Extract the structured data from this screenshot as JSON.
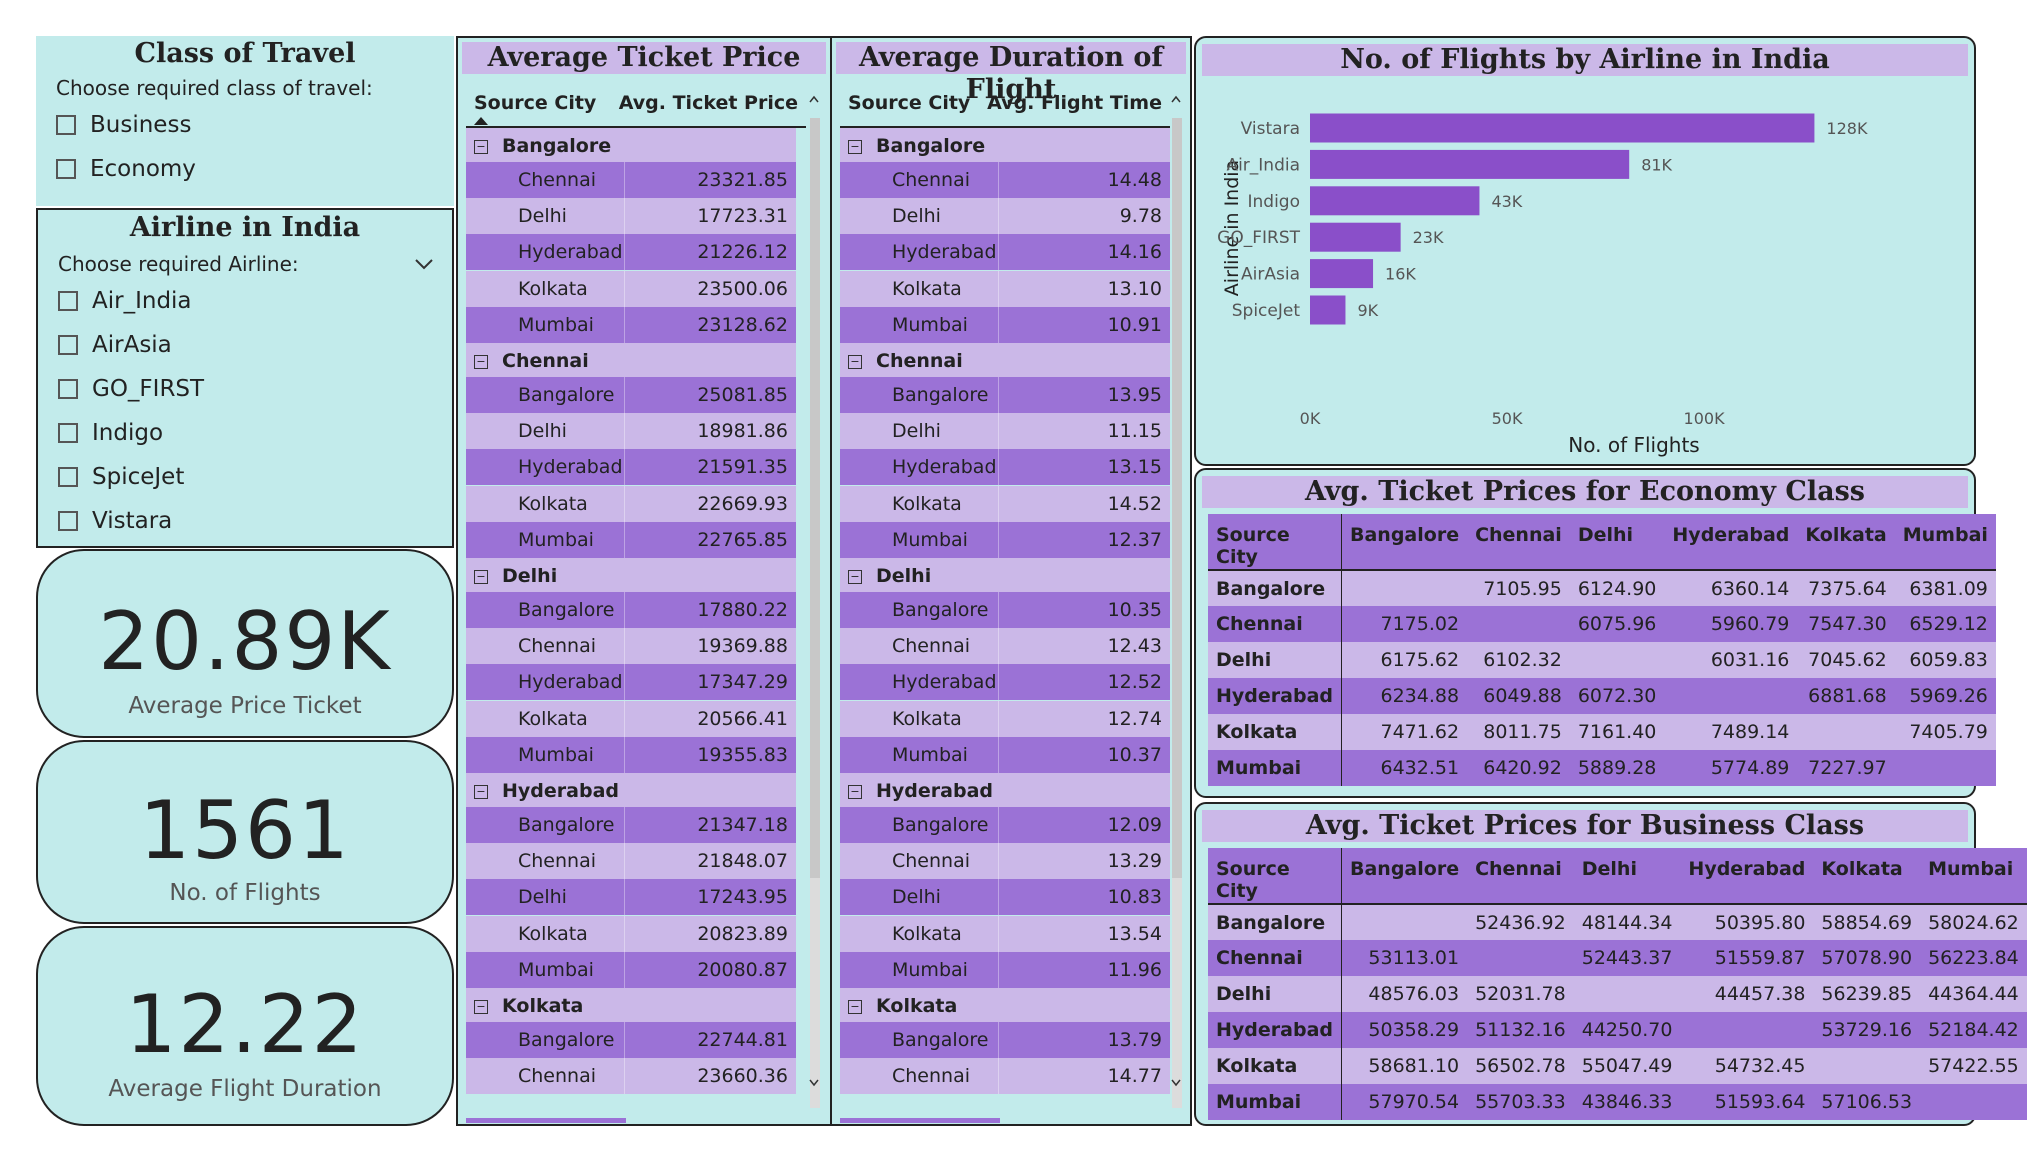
{
  "class_slicer": {
    "title": "Class of Travel",
    "subtitle": "Choose required class of travel:",
    "options": [
      "Business",
      "Economy"
    ]
  },
  "airline_slicer": {
    "title": "Airline in India",
    "subtitle": "Choose required Airline:",
    "options": [
      "Air_India",
      "AirAsia",
      "GO_FIRST",
      "Indigo",
      "SpiceJet",
      "Vistara"
    ]
  },
  "kpis": [
    {
      "value": "20.89K",
      "label": "Average Price Ticket"
    },
    {
      "value": "1561",
      "label": "No. of Flights"
    },
    {
      "value": "12.22",
      "label": "Average Flight Duration"
    }
  ],
  "price_matrix": {
    "title": "Average Ticket Price",
    "col1": "Source City",
    "col2": "Avg. Ticket Price",
    "groups": [
      {
        "name": "Bangalore",
        "rows": [
          [
            "Chennai",
            "23321.85"
          ],
          [
            "Delhi",
            "17723.31"
          ],
          [
            "Hyderabad",
            "21226.12"
          ],
          [
            "Kolkata",
            "23500.06"
          ],
          [
            "Mumbai",
            "23128.62"
          ]
        ]
      },
      {
        "name": "Chennai",
        "rows": [
          [
            "Bangalore",
            "25081.85"
          ],
          [
            "Delhi",
            "18981.86"
          ],
          [
            "Hyderabad",
            "21591.35"
          ],
          [
            "Kolkata",
            "22669.93"
          ],
          [
            "Mumbai",
            "22765.85"
          ]
        ]
      },
      {
        "name": "Delhi",
        "rows": [
          [
            "Bangalore",
            "17880.22"
          ],
          [
            "Chennai",
            "19369.88"
          ],
          [
            "Hyderabad",
            "17347.29"
          ],
          [
            "Kolkata",
            "20566.41"
          ],
          [
            "Mumbai",
            "19355.83"
          ]
        ]
      },
      {
        "name": "Hyderabad",
        "rows": [
          [
            "Bangalore",
            "21347.18"
          ],
          [
            "Chennai",
            "21848.07"
          ],
          [
            "Delhi",
            "17243.95"
          ],
          [
            "Kolkata",
            "20823.89"
          ],
          [
            "Mumbai",
            "20080.87"
          ]
        ]
      },
      {
        "name": "Kolkata",
        "rows": [
          [
            "Bangalore",
            "22744.81"
          ],
          [
            "Chennai",
            "23660.36"
          ]
        ]
      }
    ]
  },
  "duration_matrix": {
    "title": "Average Duration of Flight",
    "col1": "Source City",
    "col2": "Avg. Flight Time",
    "groups": [
      {
        "name": "Bangalore",
        "rows": [
          [
            "Chennai",
            "14.48"
          ],
          [
            "Delhi",
            "9.78"
          ],
          [
            "Hyderabad",
            "14.16"
          ],
          [
            "Kolkata",
            "13.10"
          ],
          [
            "Mumbai",
            "10.91"
          ]
        ]
      },
      {
        "name": "Chennai",
        "rows": [
          [
            "Bangalore",
            "13.95"
          ],
          [
            "Delhi",
            "11.15"
          ],
          [
            "Hyderabad",
            "13.15"
          ],
          [
            "Kolkata",
            "14.52"
          ],
          [
            "Mumbai",
            "12.37"
          ]
        ]
      },
      {
        "name": "Delhi",
        "rows": [
          [
            "Bangalore",
            "10.35"
          ],
          [
            "Chennai",
            "12.43"
          ],
          [
            "Hyderabad",
            "12.52"
          ],
          [
            "Kolkata",
            "12.74"
          ],
          [
            "Mumbai",
            "10.37"
          ]
        ]
      },
      {
        "name": "Hyderabad",
        "rows": [
          [
            "Bangalore",
            "12.09"
          ],
          [
            "Chennai",
            "13.29"
          ],
          [
            "Delhi",
            "10.83"
          ],
          [
            "Kolkata",
            "13.54"
          ],
          [
            "Mumbai",
            "11.96"
          ]
        ]
      },
      {
        "name": "Kolkata",
        "rows": [
          [
            "Bangalore",
            "13.79"
          ],
          [
            "Chennai",
            "14.77"
          ]
        ]
      }
    ]
  },
  "chart_data": {
    "type": "bar",
    "orientation": "horizontal",
    "title": "No. of Flights by Airline in India",
    "xlabel": "No. of Flights",
    "ylabel": "Airline in India",
    "categories": [
      "Vistara",
      "Air_India",
      "Indigo",
      "GO_FIRST",
      "AirAsia",
      "SpiceJet"
    ],
    "values": [
      128000,
      81000,
      43000,
      23000,
      16000,
      9000
    ],
    "data_labels": [
      "128K",
      "81K",
      "43K",
      "23K",
      "16K",
      "9K"
    ],
    "xticks": [
      "0K",
      "50K",
      "100K"
    ],
    "xtick_values": [
      0,
      50000,
      100000
    ],
    "xlim": [
      0,
      135000
    ],
    "bar_color": "#8a4fc9",
    "grid": false
  },
  "economy_table": {
    "title": "Avg. Ticket Prices for Economy Class",
    "headers": [
      "Source City",
      "Bangalore",
      "Chennai",
      "Delhi",
      "Hyderabad",
      "Kolkata",
      "Mumbai"
    ],
    "rows": [
      [
        "Bangalore",
        "",
        "7105.95",
        "6124.90",
        "6360.14",
        "7375.64",
        "6381.09"
      ],
      [
        "Chennai",
        "7175.02",
        "",
        "6075.96",
        "5960.79",
        "7547.30",
        "6529.12"
      ],
      [
        "Delhi",
        "6175.62",
        "6102.32",
        "",
        "6031.16",
        "7045.62",
        "6059.83"
      ],
      [
        "Hyderabad",
        "6234.88",
        "6049.88",
        "6072.30",
        "",
        "6881.68",
        "5969.26"
      ],
      [
        "Kolkata",
        "7471.62",
        "8011.75",
        "7161.40",
        "7489.14",
        "",
        "7405.79"
      ],
      [
        "Mumbai",
        "6432.51",
        "6420.92",
        "5889.28",
        "5774.89",
        "7227.97",
        ""
      ]
    ]
  },
  "business_table": {
    "title": "Avg. Ticket Prices for Business Class",
    "headers": [
      "Source City",
      "Bangalore",
      "Chennai",
      "Delhi",
      "Hyderabad",
      "Kolkata",
      "Mumbai"
    ],
    "rows": [
      [
        "Bangalore",
        "",
        "52436.92",
        "48144.34",
        "50395.80",
        "58854.69",
        "58024.62"
      ],
      [
        "Chennai",
        "53113.01",
        "",
        "52443.37",
        "51559.87",
        "57078.90",
        "56223.84"
      ],
      [
        "Delhi",
        "48576.03",
        "52031.78",
        "",
        "44457.38",
        "56239.85",
        "44364.44"
      ],
      [
        "Hyderabad",
        "50358.29",
        "51132.16",
        "44250.70",
        "",
        "53729.16",
        "52184.42"
      ],
      [
        "Kolkata",
        "58681.10",
        "56502.78",
        "55047.49",
        "54732.45",
        "",
        "57422.55"
      ],
      [
        "Mumbai",
        "57970.54",
        "55703.33",
        "43846.33",
        "51593.64",
        "57106.53",
        ""
      ]
    ]
  },
  "colors": {
    "panel_bg": "#c2ebeb",
    "header_purple": "#cbb8e8",
    "row_dark": "#9b72d6",
    "bar": "#8a4fc9"
  }
}
